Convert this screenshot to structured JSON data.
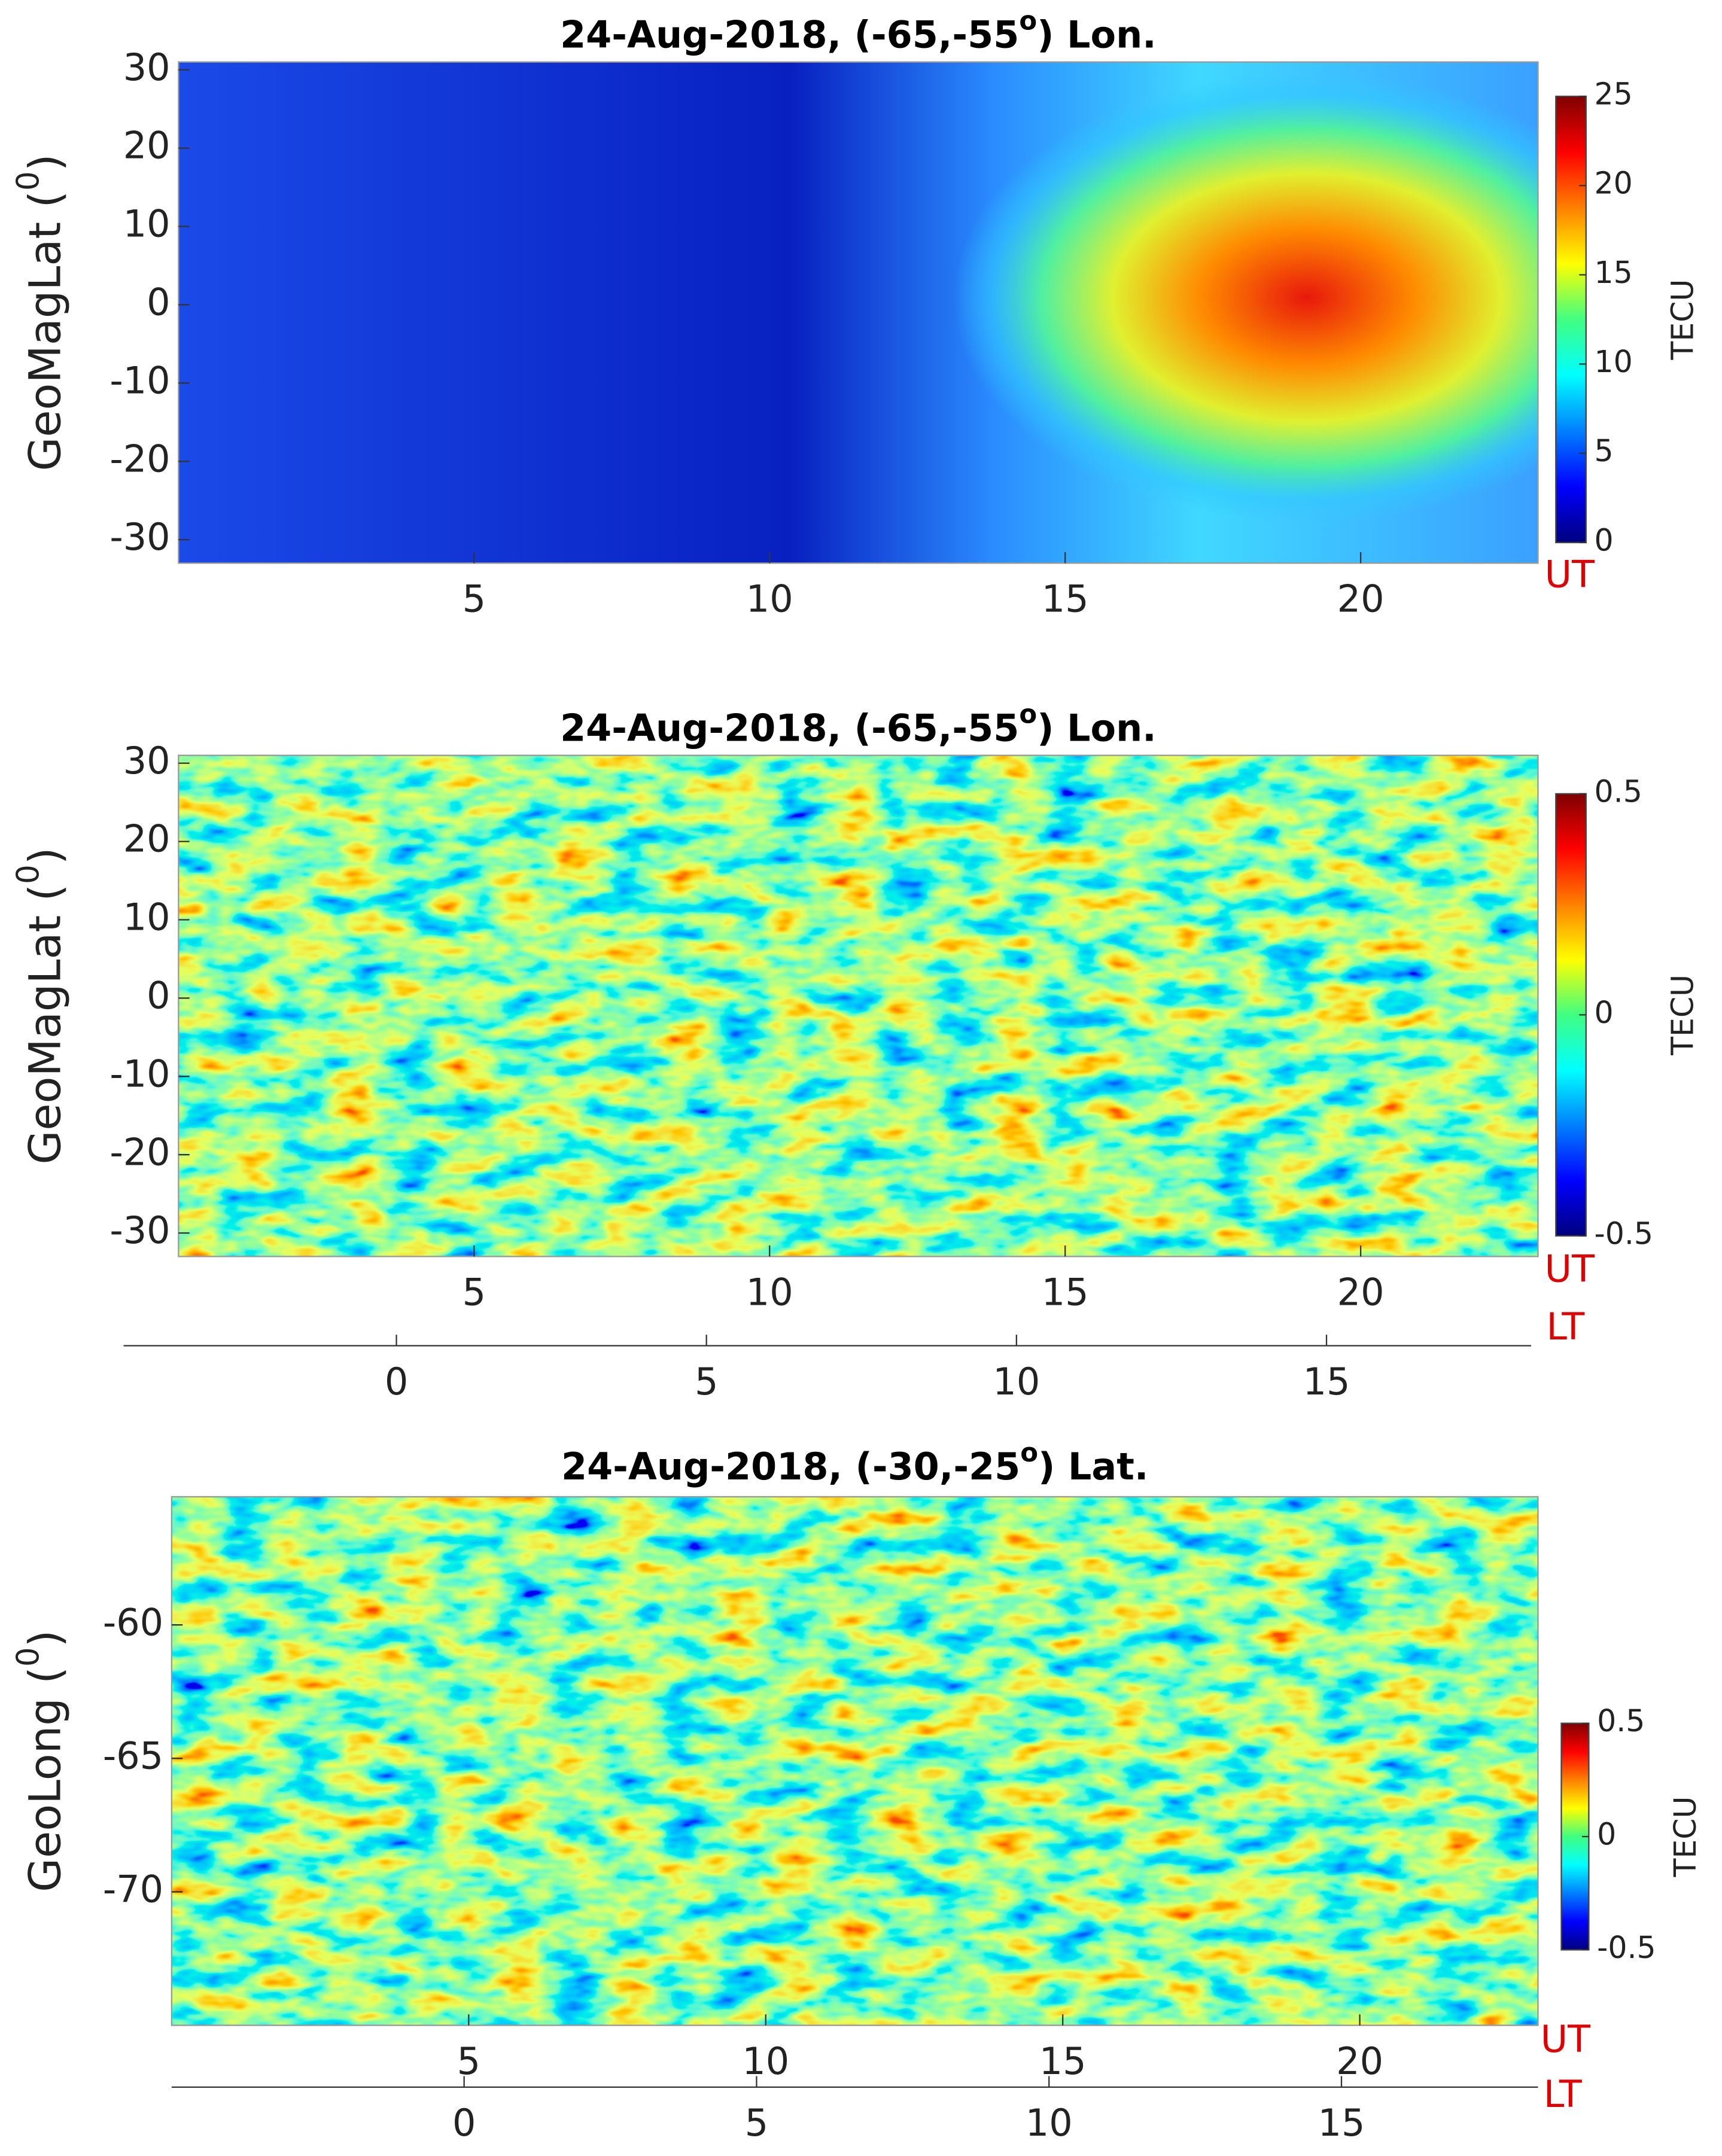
{
  "chart_data": [
    {
      "type": "heatmap",
      "title": [
        "24-Aug-2018, (-65,-55",
        "o",
        ") Lon."
      ],
      "ylabel": [
        "GeoMagLat (",
        "0",
        ")"
      ],
      "xlim": [
        0,
        23
      ],
      "xticks": [
        5,
        10,
        15,
        20
      ],
      "x_label": "UT",
      "ylim": [
        -33,
        31
      ],
      "yticks": [
        -30,
        -20,
        -10,
        0,
        10,
        20,
        30
      ],
      "colorbar": {
        "label": "TECU",
        "lim": [
          0,
          25
        ],
        "ticks": [
          0,
          5,
          10,
          15,
          20,
          25
        ]
      }
    },
    {
      "type": "heatmap",
      "title": [
        "24-Aug-2018, (-65,-55",
        "o",
        ") Lon."
      ],
      "ylabel": [
        "GeoMagLat (",
        "0",
        ")"
      ],
      "xlim": [
        0,
        23
      ],
      "xticks": [
        5,
        10,
        15,
        20
      ],
      "x_label": "UT",
      "ylim": [
        -33,
        31
      ],
      "yticks": [
        -30,
        -20,
        -10,
        0,
        10,
        20,
        30
      ],
      "colorbar": {
        "label": "TECU",
        "lim": [
          -0.5,
          0.5
        ],
        "ticks": [
          -0.5,
          0,
          0.5
        ]
      },
      "lt_axis": {
        "label": "LT",
        "xlim": [
          -4.4,
          18.3
        ],
        "xticks": [
          0,
          5,
          10,
          15
        ]
      }
    },
    {
      "type": "heatmap",
      "title": [
        "24-Aug-2018, (-30,-25",
        "o",
        ") Lat."
      ],
      "ylabel": [
        "GeoLong (",
        "0",
        ")"
      ],
      "xlim": [
        0,
        23
      ],
      "xticks": [
        5,
        10,
        15,
        20
      ],
      "x_label": "UT",
      "ylim": [
        -75,
        -55.2
      ],
      "yticks": [
        -70,
        -65,
        -60
      ],
      "colorbar": {
        "label": "TECU",
        "lim": [
          -0.5,
          0.5
        ],
        "ticks": [
          -0.5,
          0,
          0.5
        ]
      },
      "lt_axis": {
        "label": "LT",
        "xlim": [
          -5,
          18.36
        ],
        "xticks": [
          0,
          5,
          10,
          15
        ]
      }
    }
  ]
}
